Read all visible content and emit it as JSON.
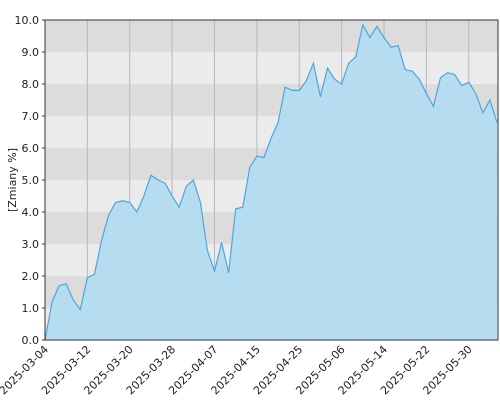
{
  "chart_data": {
    "type": "area",
    "y_label": "[Zmiany %]",
    "categories": [
      "2025-03-04",
      null,
      null,
      null,
      null,
      null,
      "2025-03-12",
      null,
      null,
      null,
      null,
      null,
      "2025-03-20",
      null,
      null,
      null,
      null,
      null,
      "2025-03-28",
      null,
      null,
      null,
      null,
      null,
      "2025-04-07",
      null,
      null,
      null,
      null,
      null,
      "2025-04-15",
      null,
      null,
      null,
      null,
      null,
      "2025-04-25",
      null,
      null,
      null,
      null,
      null,
      "2025-05-06",
      null,
      null,
      null,
      null,
      null,
      "2025-05-14",
      null,
      null,
      null,
      null,
      null,
      "2025-05-22",
      null,
      null,
      null,
      null,
      null,
      "2025-05-30",
      null,
      null,
      null,
      null
    ],
    "values": [
      0.0,
      1.2,
      1.7,
      1.75,
      1.25,
      0.95,
      1.95,
      2.05,
      3.1,
      3.9,
      4.3,
      4.35,
      4.3,
      4.0,
      4.5,
      5.15,
      5.0,
      4.9,
      4.5,
      4.15,
      4.8,
      5.0,
      4.3,
      2.8,
      2.15,
      3.05,
      2.1,
      4.1,
      4.15,
      5.4,
      5.75,
      5.7,
      6.3,
      6.8,
      7.9,
      7.8,
      7.8,
      8.1,
      8.65,
      7.6,
      8.5,
      8.15,
      8.0,
      8.65,
      8.85,
      9.85,
      9.45,
      9.8,
      9.45,
      9.15,
      9.2,
      8.45,
      8.4,
      8.15,
      7.7,
      7.3,
      8.2,
      8.35,
      8.3,
      7.95,
      8.05,
      7.7,
      7.1,
      7.5,
      6.8
    ],
    "color": "#4da6e0",
    "fill": "#b5ddef",
    "ylim": [
      0,
      10
    ],
    "yticks": [
      {
        "value": 0,
        "label": "0.0"
      },
      {
        "value": 1,
        "label": "1.0"
      },
      {
        "value": 2,
        "label": "2.0"
      },
      {
        "value": 3,
        "label": "3.0"
      },
      {
        "value": 4,
        "label": "4.0"
      },
      {
        "value": 5,
        "label": "5.0"
      },
      {
        "value": 6,
        "label": "6.0"
      },
      {
        "value": 7,
        "label": "7.0"
      },
      {
        "value": 8,
        "label": "8.0"
      },
      {
        "value": 9,
        "label": "9.0"
      },
      {
        "value": 10,
        "label": "10.0"
      }
    ],
    "grid": true
  }
}
